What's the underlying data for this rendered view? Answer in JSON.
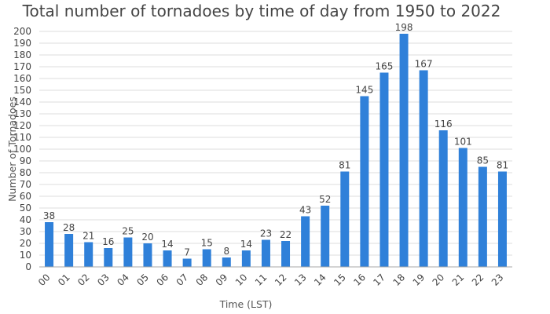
{
  "chart_data": {
    "type": "bar",
    "title": "Total number of tornadoes by time of day from 1950 to 2022",
    "xlabel": "Time (LST)",
    "ylabel": "Number of Tornadoes",
    "categories": [
      "00",
      "01",
      "02",
      "03",
      "04",
      "05",
      "06",
      "07",
      "08",
      "09",
      "10",
      "11",
      "12",
      "13",
      "14",
      "15",
      "16",
      "17",
      "18",
      "19",
      "20",
      "21",
      "22",
      "23"
    ],
    "values": [
      38,
      28,
      21,
      16,
      25,
      20,
      14,
      7,
      15,
      8,
      14,
      23,
      22,
      43,
      52,
      81,
      145,
      165,
      198,
      167,
      116,
      101,
      85,
      81
    ],
    "ylim": [
      0,
      200
    ],
    "yticks": [
      0,
      10,
      20,
      30,
      40,
      50,
      60,
      70,
      80,
      90,
      100,
      110,
      120,
      130,
      140,
      150,
      160,
      170,
      180,
      190,
      200
    ],
    "grid": true,
    "legend": "none",
    "bar_color": "#2f80d9"
  }
}
